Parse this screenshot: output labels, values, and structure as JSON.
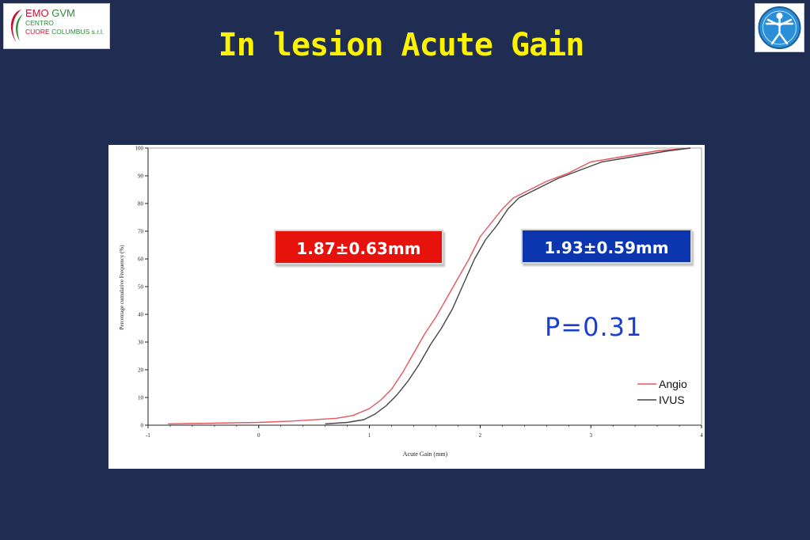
{
  "slide": {
    "title": "In lesion Acute Gain"
  },
  "logo_left": {
    "line1_a": "EMO",
    "line1_b": "GVM",
    "line2": "CENTRO",
    "line3_a": "CUORE",
    "line3_b": "COLUMBUS s.r.l."
  },
  "logo_right": {
    "icon": "vitruvian-man-icon"
  },
  "annotations": {
    "angio_stat": "1.87±0.63mm",
    "ivus_stat": "1.93±0.59mm",
    "p_value": "P=0.31"
  },
  "colors": {
    "background": "#1f2d52",
    "title": "#fdf200",
    "angio": "#e8555a",
    "ivus": "#444444",
    "angio_badge": "#e8120c",
    "ivus_badge": "#0c36b0",
    "p_value": "#1a3fd0"
  },
  "chart_data": {
    "type": "line",
    "xlabel": "Acute Gain (mm)",
    "ylabel": "Percentage cumulative Frequency (%)",
    "xlim": [
      -1,
      4
    ],
    "ylim": [
      0,
      100
    ],
    "x_ticks": [
      "-1",
      "0",
      "1",
      "2",
      "3",
      "4"
    ],
    "y_ticks": [
      "0",
      "10",
      "20",
      "30",
      "40",
      "50",
      "60",
      "70",
      "80",
      "90",
      "100"
    ],
    "grid": false,
    "legend": "bottom-right",
    "series": [
      {
        "name": "Angio",
        "x": [
          -0.82,
          0.0,
          0.3,
          0.7,
          0.85,
          1.0,
          1.1,
          1.2,
          1.3,
          1.4,
          1.5,
          1.6,
          1.7,
          1.8,
          1.9,
          2.0,
          2.1,
          2.2,
          2.3,
          2.4,
          2.6,
          2.8,
          3.0,
          3.3,
          3.6,
          3.9
        ],
        "values": [
          0.5,
          1,
          1.5,
          2.5,
          3.5,
          6,
          9,
          13,
          19,
          26,
          33,
          39,
          46,
          53,
          60,
          68,
          73,
          78,
          82,
          84,
          88,
          91,
          95,
          97,
          99,
          100
        ]
      },
      {
        "name": "IVUS",
        "x": [
          0.6,
          0.8,
          0.95,
          1.05,
          1.15,
          1.25,
          1.35,
          1.45,
          1.55,
          1.65,
          1.75,
          1.85,
          1.95,
          2.05,
          2.15,
          2.25,
          2.35,
          2.5,
          2.7,
          2.9,
          3.1,
          3.4,
          3.7,
          3.9
        ],
        "values": [
          0.5,
          1,
          2,
          4,
          7,
          11,
          16,
          22,
          29,
          35,
          42,
          51,
          60,
          67,
          72,
          78,
          82,
          85,
          89,
          92,
          95,
          97,
          99,
          100
        ]
      }
    ]
  }
}
